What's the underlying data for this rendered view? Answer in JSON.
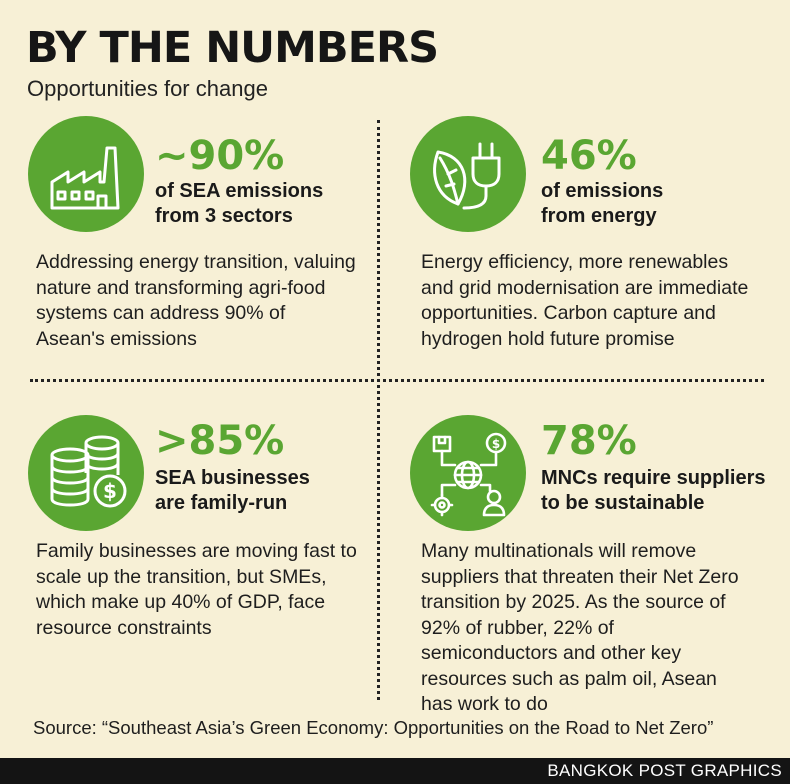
{
  "header": {
    "title": "BY THE NUMBERS",
    "subtitle": "Opportunities for change"
  },
  "colors": {
    "accent_green": "#5aa632",
    "background": "#f7f0d6",
    "footer_bg": "#141414"
  },
  "cards": [
    {
      "icon": "factory-icon",
      "stat": "~90%",
      "label_line1": "of SEA emissions",
      "label_line2": "from 3 sectors",
      "description": "Addressing energy transition, valuing nature and transforming agri-food systems can address 90% of Asean's emissions"
    },
    {
      "icon": "leaf-plug-icon",
      "stat": "46%",
      "label_line1": "of emissions",
      "label_line2": "from energy",
      "description": "Energy efficiency, more renewables and grid modernisation are immediate opportunities. Carbon capture and hydrogen hold future promise"
    },
    {
      "icon": "coins-stack-icon",
      "stat": ">85%",
      "label_line1": "SEA businesses",
      "label_line2": "are family-run",
      "description": "Family businesses are moving fast to scale up the transition, but SMEs, which make up 40% of GDP, face resource constraints"
    },
    {
      "icon": "global-supply-network-icon",
      "stat": "78%",
      "label_line1": "MNCs require suppliers",
      "label_line2": "to be sustainable",
      "description": "Many multinationals will remove suppliers that threaten their Net Zero transition by 2025. As the source of 92% of rubber, 22% of semiconductors and other key resources such as palm oil, Asean has work to do"
    }
  ],
  "source": "Source: “Southeast Asia’s Green Economy: Opportunities on the Road to Net Zero”",
  "footer": {
    "credit": "BANGKOK POST GRAPHICS"
  }
}
